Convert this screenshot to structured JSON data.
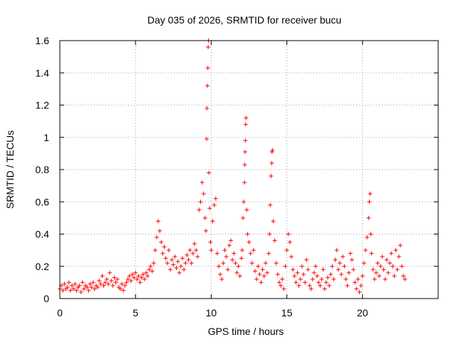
{
  "chart_data": {
    "type": "scatter",
    "title": "Day 035 of 2026, SRMTID for receiver bucu",
    "xlabel": "GPS time / hours",
    "ylabel": "SRMTID / TECUs",
    "xlim": [
      0,
      25
    ],
    "ylim": [
      0,
      1.6
    ],
    "xticks": [
      0,
      5,
      10,
      15,
      20
    ],
    "xtick_labels": [
      "0",
      "5",
      "10",
      "15",
      "20"
    ],
    "yticks": [
      0,
      0.2,
      0.4,
      0.6,
      0.8,
      1,
      1.2,
      1.4,
      1.6
    ],
    "ytick_labels": [
      "0",
      "0.2",
      "0.4",
      "0.6",
      "0.8",
      "1",
      "1.2",
      "1.4",
      "1.6"
    ],
    "grid": true,
    "marker": "+",
    "color": "#ff0000",
    "series": [
      {
        "name": "SRMTID",
        "points": [
          [
            0.0,
            0.06
          ],
          [
            0.1,
            0.08
          ],
          [
            0.2,
            0.05
          ],
          [
            0.3,
            0.09
          ],
          [
            0.4,
            0.06
          ],
          [
            0.5,
            0.07
          ],
          [
            0.6,
            0.1
          ],
          [
            0.7,
            0.05
          ],
          [
            0.8,
            0.08
          ],
          [
            0.9,
            0.06
          ],
          [
            1.0,
            0.09
          ],
          [
            1.1,
            0.05
          ],
          [
            1.2,
            0.07
          ],
          [
            1.3,
            0.08
          ],
          [
            1.4,
            0.04
          ],
          [
            1.5,
            0.1
          ],
          [
            1.6,
            0.06
          ],
          [
            1.7,
            0.08
          ],
          [
            1.8,
            0.07
          ],
          [
            1.9,
            0.05
          ],
          [
            2.0,
            0.09
          ],
          [
            2.1,
            0.07
          ],
          [
            2.2,
            0.1
          ],
          [
            2.3,
            0.06
          ],
          [
            2.4,
            0.08
          ],
          [
            2.5,
            0.07
          ],
          [
            2.6,
            0.11
          ],
          [
            2.7,
            0.09
          ],
          [
            2.8,
            0.14
          ],
          [
            2.9,
            0.08
          ],
          [
            3.0,
            0.1
          ],
          [
            3.1,
            0.12
          ],
          [
            3.2,
            0.09
          ],
          [
            3.3,
            0.16
          ],
          [
            3.4,
            0.11
          ],
          [
            3.5,
            0.08
          ],
          [
            3.6,
            0.13
          ],
          [
            3.7,
            0.1
          ],
          [
            3.8,
            0.12
          ],
          [
            3.9,
            0.07
          ],
          [
            4.0,
            0.06
          ],
          [
            4.1,
            0.09
          ],
          [
            4.2,
            0.05
          ],
          [
            4.3,
            0.08
          ],
          [
            4.4,
            0.1
          ],
          [
            4.5,
            0.12
          ],
          [
            4.6,
            0.14
          ],
          [
            4.7,
            0.11
          ],
          [
            4.8,
            0.15
          ],
          [
            4.9,
            0.13
          ],
          [
            5.0,
            0.16
          ],
          [
            5.1,
            0.12
          ],
          [
            5.2,
            0.14
          ],
          [
            5.3,
            0.1
          ],
          [
            5.4,
            0.13
          ],
          [
            5.5,
            0.15
          ],
          [
            5.6,
            0.12
          ],
          [
            5.7,
            0.16
          ],
          [
            5.8,
            0.14
          ],
          [
            5.9,
            0.18
          ],
          [
            6.0,
            0.2
          ],
          [
            6.1,
            0.17
          ],
          [
            6.2,
            0.22
          ],
          [
            6.3,
            0.3
          ],
          [
            6.4,
            0.38
          ],
          [
            6.5,
            0.48
          ],
          [
            6.6,
            0.42
          ],
          [
            6.7,
            0.35
          ],
          [
            6.8,
            0.28
          ],
          [
            6.9,
            0.32
          ],
          [
            7.0,
            0.25
          ],
          [
            7.1,
            0.22
          ],
          [
            7.2,
            0.3
          ],
          [
            7.3,
            0.18
          ],
          [
            7.4,
            0.24
          ],
          [
            7.5,
            0.21
          ],
          [
            7.6,
            0.26
          ],
          [
            7.7,
            0.19
          ],
          [
            7.8,
            0.23
          ],
          [
            7.9,
            0.16
          ],
          [
            8.0,
            0.2
          ],
          [
            8.1,
            0.25
          ],
          [
            8.2,
            0.18
          ],
          [
            8.3,
            0.22
          ],
          [
            8.4,
            0.27
          ],
          [
            8.5,
            0.24
          ],
          [
            8.6,
            0.3
          ],
          [
            8.7,
            0.22
          ],
          [
            8.8,
            0.28
          ],
          [
            8.9,
            0.34
          ],
          [
            9.0,
            0.3
          ],
          [
            9.1,
            0.26
          ],
          [
            9.2,
            0.55
          ],
          [
            9.3,
            0.6
          ],
          [
            9.4,
            0.72
          ],
          [
            9.5,
            0.65
          ],
          [
            9.6,
            0.5
          ],
          [
            9.65,
            0.42
          ],
          [
            9.7,
            0.99
          ],
          [
            9.72,
            1.18
          ],
          [
            9.75,
            1.32
          ],
          [
            9.78,
            1.43
          ],
          [
            9.8,
            1.56
          ],
          [
            9.82,
            1.6
          ],
          [
            9.85,
            0.78
          ],
          [
            9.9,
            0.56
          ],
          [
            9.95,
            0.35
          ],
          [
            10.0,
            0.3
          ],
          [
            10.1,
            0.48
          ],
          [
            10.2,
            0.58
          ],
          [
            10.3,
            0.62
          ],
          [
            10.4,
            0.28
          ],
          [
            10.5,
            0.2
          ],
          [
            10.6,
            0.15
          ],
          [
            10.7,
            0.12
          ],
          [
            10.8,
            0.22
          ],
          [
            10.9,
            0.3
          ],
          [
            11.0,
            0.26
          ],
          [
            11.1,
            0.18
          ],
          [
            11.2,
            0.33
          ],
          [
            11.3,
            0.36
          ],
          [
            11.4,
            0.24
          ],
          [
            11.5,
            0.28
          ],
          [
            11.6,
            0.22
          ],
          [
            11.7,
            0.16
          ],
          [
            11.8,
            0.2
          ],
          [
            11.9,
            0.14
          ],
          [
            12.0,
            0.25
          ],
          [
            12.05,
            0.3
          ],
          [
            12.1,
            0.5
          ],
          [
            12.15,
            0.6
          ],
          [
            12.2,
            0.72
          ],
          [
            12.22,
            0.83
          ],
          [
            12.24,
            0.91
          ],
          [
            12.26,
            0.98
          ],
          [
            12.28,
            1.08
          ],
          [
            12.3,
            1.12
          ],
          [
            12.35,
            0.55
          ],
          [
            12.4,
            0.4
          ],
          [
            12.5,
            0.35
          ],
          [
            12.6,
            0.28
          ],
          [
            12.7,
            0.22
          ],
          [
            12.8,
            0.3
          ],
          [
            12.9,
            0.17
          ],
          [
            13.0,
            0.12
          ],
          [
            13.1,
            0.2
          ],
          [
            13.2,
            0.15
          ],
          [
            13.3,
            0.1
          ],
          [
            13.4,
            0.18
          ],
          [
            13.5,
            0.14
          ],
          [
            13.6,
            0.22
          ],
          [
            13.7,
            0.16
          ],
          [
            13.8,
            0.28
          ],
          [
            13.85,
            0.4
          ],
          [
            13.9,
            0.58
          ],
          [
            13.95,
            0.76
          ],
          [
            14.0,
            0.84
          ],
          [
            14.02,
            0.91
          ],
          [
            14.05,
            0.92
          ],
          [
            14.1,
            0.48
          ],
          [
            14.2,
            0.36
          ],
          [
            14.3,
            0.22
          ],
          [
            14.4,
            0.15
          ],
          [
            14.5,
            0.1
          ],
          [
            14.6,
            0.08
          ],
          [
            14.7,
            0.12
          ],
          [
            14.8,
            0.06
          ],
          [
            14.9,
            0.2
          ],
          [
            15.0,
            0.3
          ],
          [
            15.1,
            0.4
          ],
          [
            15.2,
            0.35
          ],
          [
            15.3,
            0.26
          ],
          [
            15.4,
            0.18
          ],
          [
            15.5,
            0.14
          ],
          [
            15.6,
            0.1
          ],
          [
            15.7,
            0.16
          ],
          [
            15.8,
            0.08
          ],
          [
            15.9,
            0.12
          ],
          [
            16.0,
            0.2
          ],
          [
            16.1,
            0.15
          ],
          [
            16.2,
            0.1
          ],
          [
            16.3,
            0.24
          ],
          [
            16.4,
            0.18
          ],
          [
            16.5,
            0.08
          ],
          [
            16.6,
            0.06
          ],
          [
            16.7,
            0.12
          ],
          [
            16.8,
            0.16
          ],
          [
            16.9,
            0.2
          ],
          [
            17.0,
            0.14
          ],
          [
            17.1,
            0.1
          ],
          [
            17.2,
            0.08
          ],
          [
            17.3,
            0.12
          ],
          [
            17.4,
            0.18
          ],
          [
            17.5,
            0.06
          ],
          [
            17.6,
            0.1
          ],
          [
            17.7,
            0.13
          ],
          [
            17.8,
            0.08
          ],
          [
            17.9,
            0.15
          ],
          [
            18.0,
            0.2
          ],
          [
            18.1,
            0.12
          ],
          [
            18.2,
            0.24
          ],
          [
            18.3,
            0.3
          ],
          [
            18.4,
            0.18
          ],
          [
            18.5,
            0.22
          ],
          [
            18.6,
            0.15
          ],
          [
            18.7,
            0.26
          ],
          [
            18.8,
            0.2
          ],
          [
            18.9,
            0.12
          ],
          [
            19.0,
            0.08
          ],
          [
            19.1,
            0.16
          ],
          [
            19.2,
            0.28
          ],
          [
            19.3,
            0.24
          ],
          [
            19.4,
            0.18
          ],
          [
            19.5,
            0.1
          ],
          [
            19.6,
            0.06
          ],
          [
            19.7,
            0.12
          ],
          [
            19.8,
            0.04
          ],
          [
            19.9,
            0.08
          ],
          [
            20.0,
            0.14
          ],
          [
            20.1,
            0.22
          ],
          [
            20.2,
            0.3
          ],
          [
            20.3,
            0.38
          ],
          [
            20.4,
            0.5
          ],
          [
            20.45,
            0.6
          ],
          [
            20.5,
            0.65
          ],
          [
            20.55,
            0.4
          ],
          [
            20.6,
            0.28
          ],
          [
            20.7,
            0.18
          ],
          [
            20.8,
            0.12
          ],
          [
            20.9,
            0.16
          ],
          [
            21.0,
            0.22
          ],
          [
            21.1,
            0.14
          ],
          [
            21.2,
            0.2
          ],
          [
            21.3,
            0.26
          ],
          [
            21.4,
            0.18
          ],
          [
            21.5,
            0.12
          ],
          [
            21.6,
            0.24
          ],
          [
            21.7,
            0.16
          ],
          [
            21.8,
            0.22
          ],
          [
            21.9,
            0.28
          ],
          [
            22.0,
            0.2
          ],
          [
            22.1,
            0.14
          ],
          [
            22.2,
            0.3
          ],
          [
            22.3,
            0.18
          ],
          [
            22.4,
            0.26
          ],
          [
            22.5,
            0.33
          ],
          [
            22.6,
            0.2
          ],
          [
            22.7,
            0.14
          ],
          [
            22.8,
            0.12
          ]
        ]
      }
    ]
  }
}
